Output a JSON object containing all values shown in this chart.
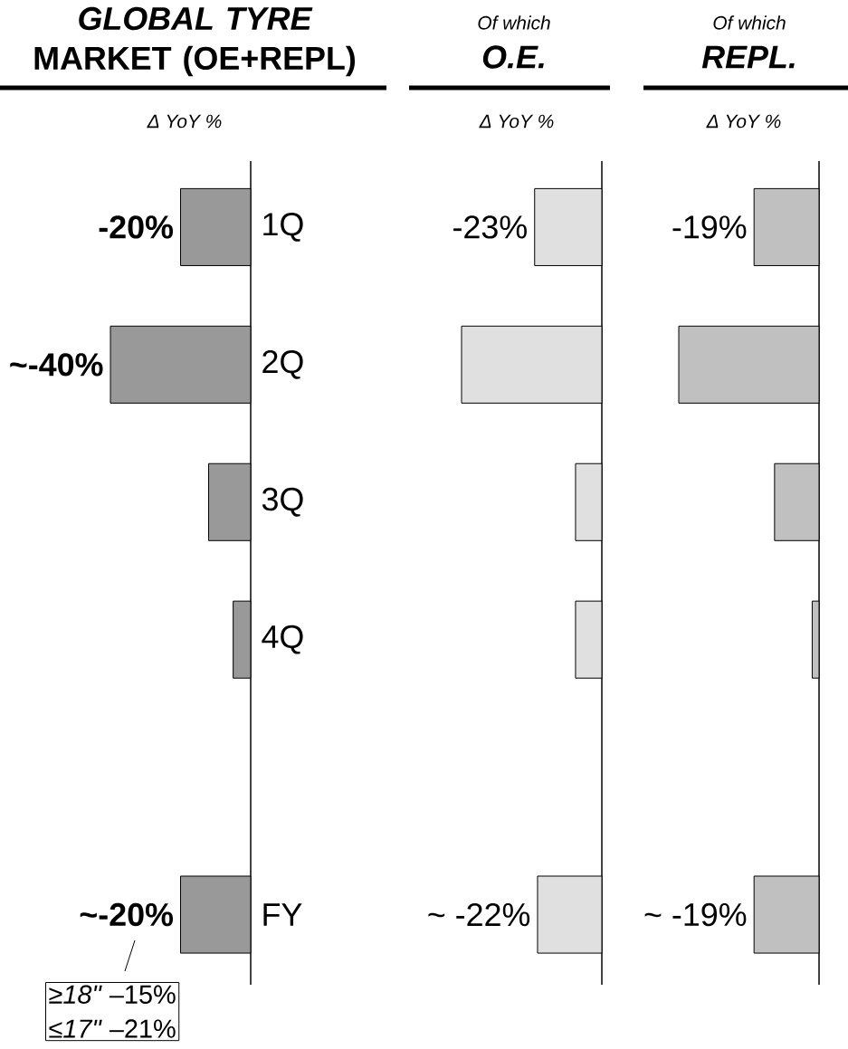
{
  "chart_data": [
    {
      "type": "bar",
      "orientation": "horizontal",
      "title": "*GLOBAL TYRE* MARKET (OE+REPL)",
      "xlabel": "Δ YoY %",
      "categories": [
        "1Q",
        "2Q",
        "3Q",
        "4Q",
        null,
        "FY"
      ],
      "tick_labels": "y",
      "values": [
        -20,
        -40,
        -12,
        -5,
        null,
        -20
      ],
      "color": "#999999",
      "value_labels": [
        "-20%",
        "~-40%",
        null,
        null,
        null,
        "~-20%"
      ],
      "annotations": [
        "≥*18\"* –15%",
        "≤*17\"* –21%"
      ]
    },
    {
      "type": "bar",
      "orientation": "horizontal",
      "title": "O.E.",
      "subtitle": "Of which",
      "xlabel": "Δ YoY %",
      "categories": [
        null,
        null,
        null,
        null,
        null,
        null
      ],
      "tick_labels": false,
      "values": [
        -23,
        -48,
        -9,
        -9,
        null,
        -22
      ],
      "color": "#e0e0e0",
      "value_labels": [
        "-23%",
        null,
        null,
        null,
        null,
        "~ -22%"
      ]
    },
    {
      "type": "bar",
      "orientation": "horizontal",
      "title": "REPL.",
      "subtitle": "Of which",
      "xlabel": "Δ YoY %",
      "categories": [
        null,
        null,
        null,
        null,
        null,
        null
      ],
      "tick_labels": false,
      "values": [
        -19,
        -41,
        -13,
        -2,
        null,
        -19
      ],
      "color": "#c0c0c0",
      "value_labels": [
        "-19%",
        null,
        null,
        null,
        null,
        "~ -19%"
      ]
    }
  ]
}
